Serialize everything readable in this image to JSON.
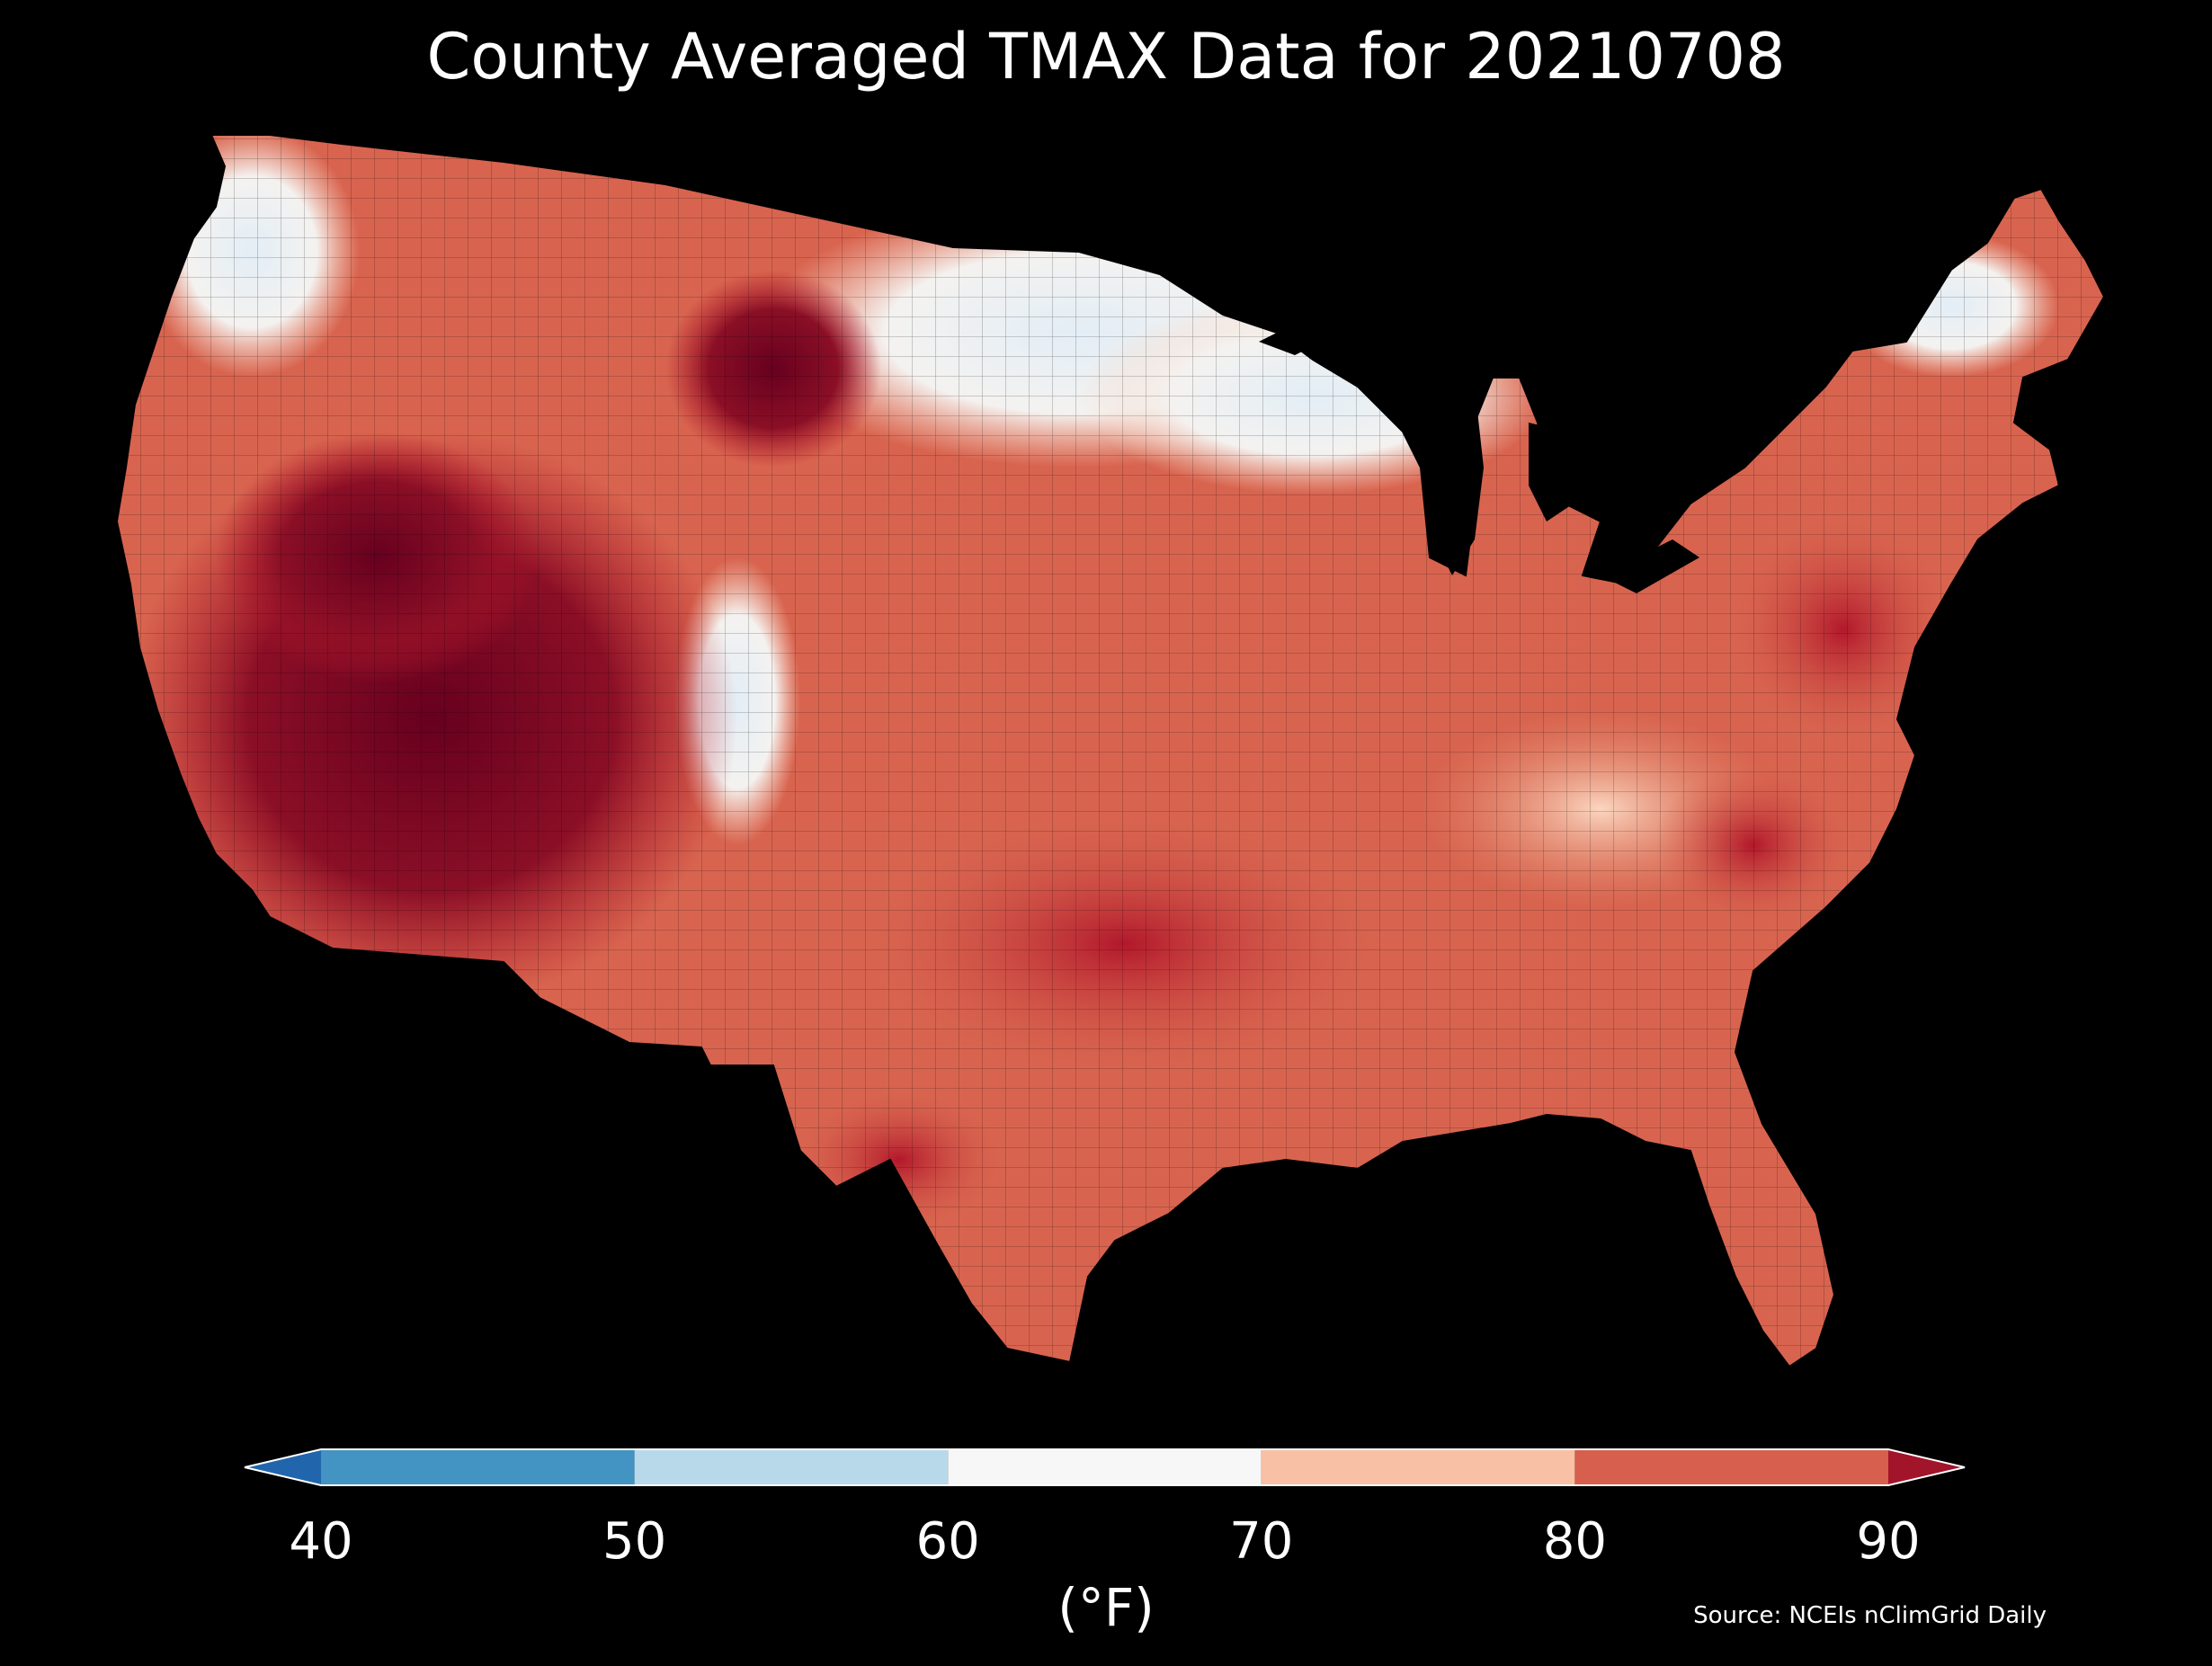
{
  "title": "County Averaged TMAX Data for 20210708",
  "colorbar": {
    "unit_label": "(°F)",
    "ticks": [
      "40",
      "50",
      "60",
      "70",
      "80",
      "90"
    ],
    "tick_values": [
      40,
      50,
      60,
      70,
      80,
      90
    ],
    "bins": [
      {
        "from": 30,
        "to": 40,
        "color": "#2166ac"
      },
      {
        "from": 40,
        "to": 50,
        "color": "#4393c3"
      },
      {
        "from": 50,
        "to": 60,
        "color": "#b8d9ea"
      },
      {
        "from": 60,
        "to": 70,
        "color": "#f7f7f7"
      },
      {
        "from": 70,
        "to": 80,
        "color": "#f8c0a4"
      },
      {
        "from": 80,
        "to": 90,
        "color": "#d6604d"
      },
      {
        "from": 90,
        "to": 100,
        "color": "#a11429"
      }
    ],
    "extend": "both"
  },
  "source": "Source: NCEIs nClimGrid Daily",
  "map": {
    "region": "Contiguous United States",
    "background": "#000000",
    "border_color": "#000000"
  }
}
